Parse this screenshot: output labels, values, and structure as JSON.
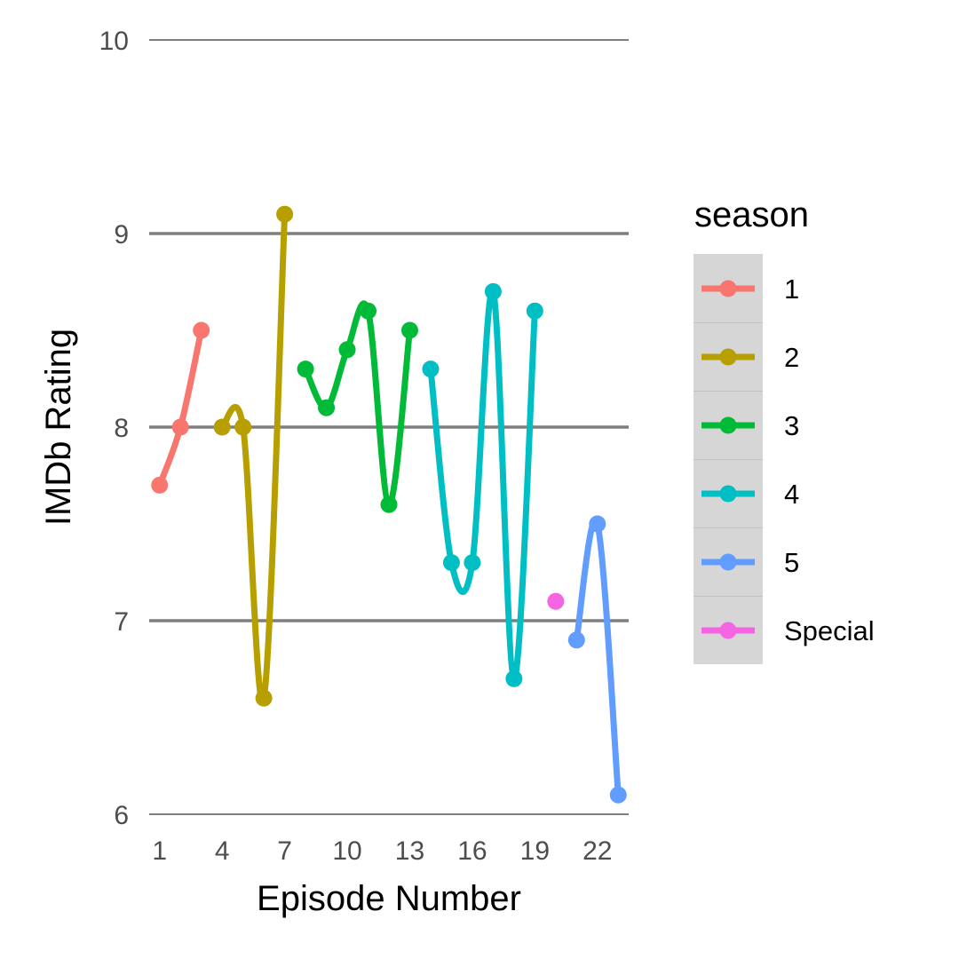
{
  "chart_data": {
    "type": "line",
    "title": "",
    "xlabel": "Episode Number",
    "ylabel": "IMDb Rating",
    "xlim": [
      0.5,
      23.5
    ],
    "ylim": [
      6,
      10
    ],
    "x_ticks": [
      1,
      4,
      7,
      10,
      13,
      16,
      19,
      22
    ],
    "y_ticks": [
      6,
      7,
      8,
      9,
      10
    ],
    "grid": "horizontal",
    "legend": {
      "title": "season",
      "position": "right"
    },
    "series": [
      {
        "name": "1",
        "color": "#F8766D",
        "points": [
          [
            1,
            7.7
          ],
          [
            2,
            8.0
          ],
          [
            3,
            8.5
          ]
        ]
      },
      {
        "name": "2",
        "color": "#B79F00",
        "points": [
          [
            4,
            8.0
          ],
          [
            5,
            8.0
          ],
          [
            6,
            6.6
          ],
          [
            7,
            9.1
          ]
        ]
      },
      {
        "name": "3",
        "color": "#00BA38",
        "points": [
          [
            8,
            8.3
          ],
          [
            9,
            8.1
          ],
          [
            10,
            8.4
          ],
          [
            11,
            8.6
          ],
          [
            12,
            7.6
          ],
          [
            13,
            8.5
          ]
        ]
      },
      {
        "name": "4",
        "color": "#00BFC4",
        "points": [
          [
            14,
            8.3
          ],
          [
            15,
            7.3
          ],
          [
            16,
            7.3
          ],
          [
            17,
            8.7
          ],
          [
            18,
            6.7
          ],
          [
            19,
            8.6
          ]
        ]
      },
      {
        "name": "5",
        "color": "#619CFF",
        "points": [
          [
            21,
            6.9
          ],
          [
            22,
            7.5
          ],
          [
            23,
            6.1
          ]
        ]
      },
      {
        "name": "Special",
        "color": "#F564E3",
        "points": [
          [
            20,
            7.1
          ]
        ]
      }
    ]
  }
}
